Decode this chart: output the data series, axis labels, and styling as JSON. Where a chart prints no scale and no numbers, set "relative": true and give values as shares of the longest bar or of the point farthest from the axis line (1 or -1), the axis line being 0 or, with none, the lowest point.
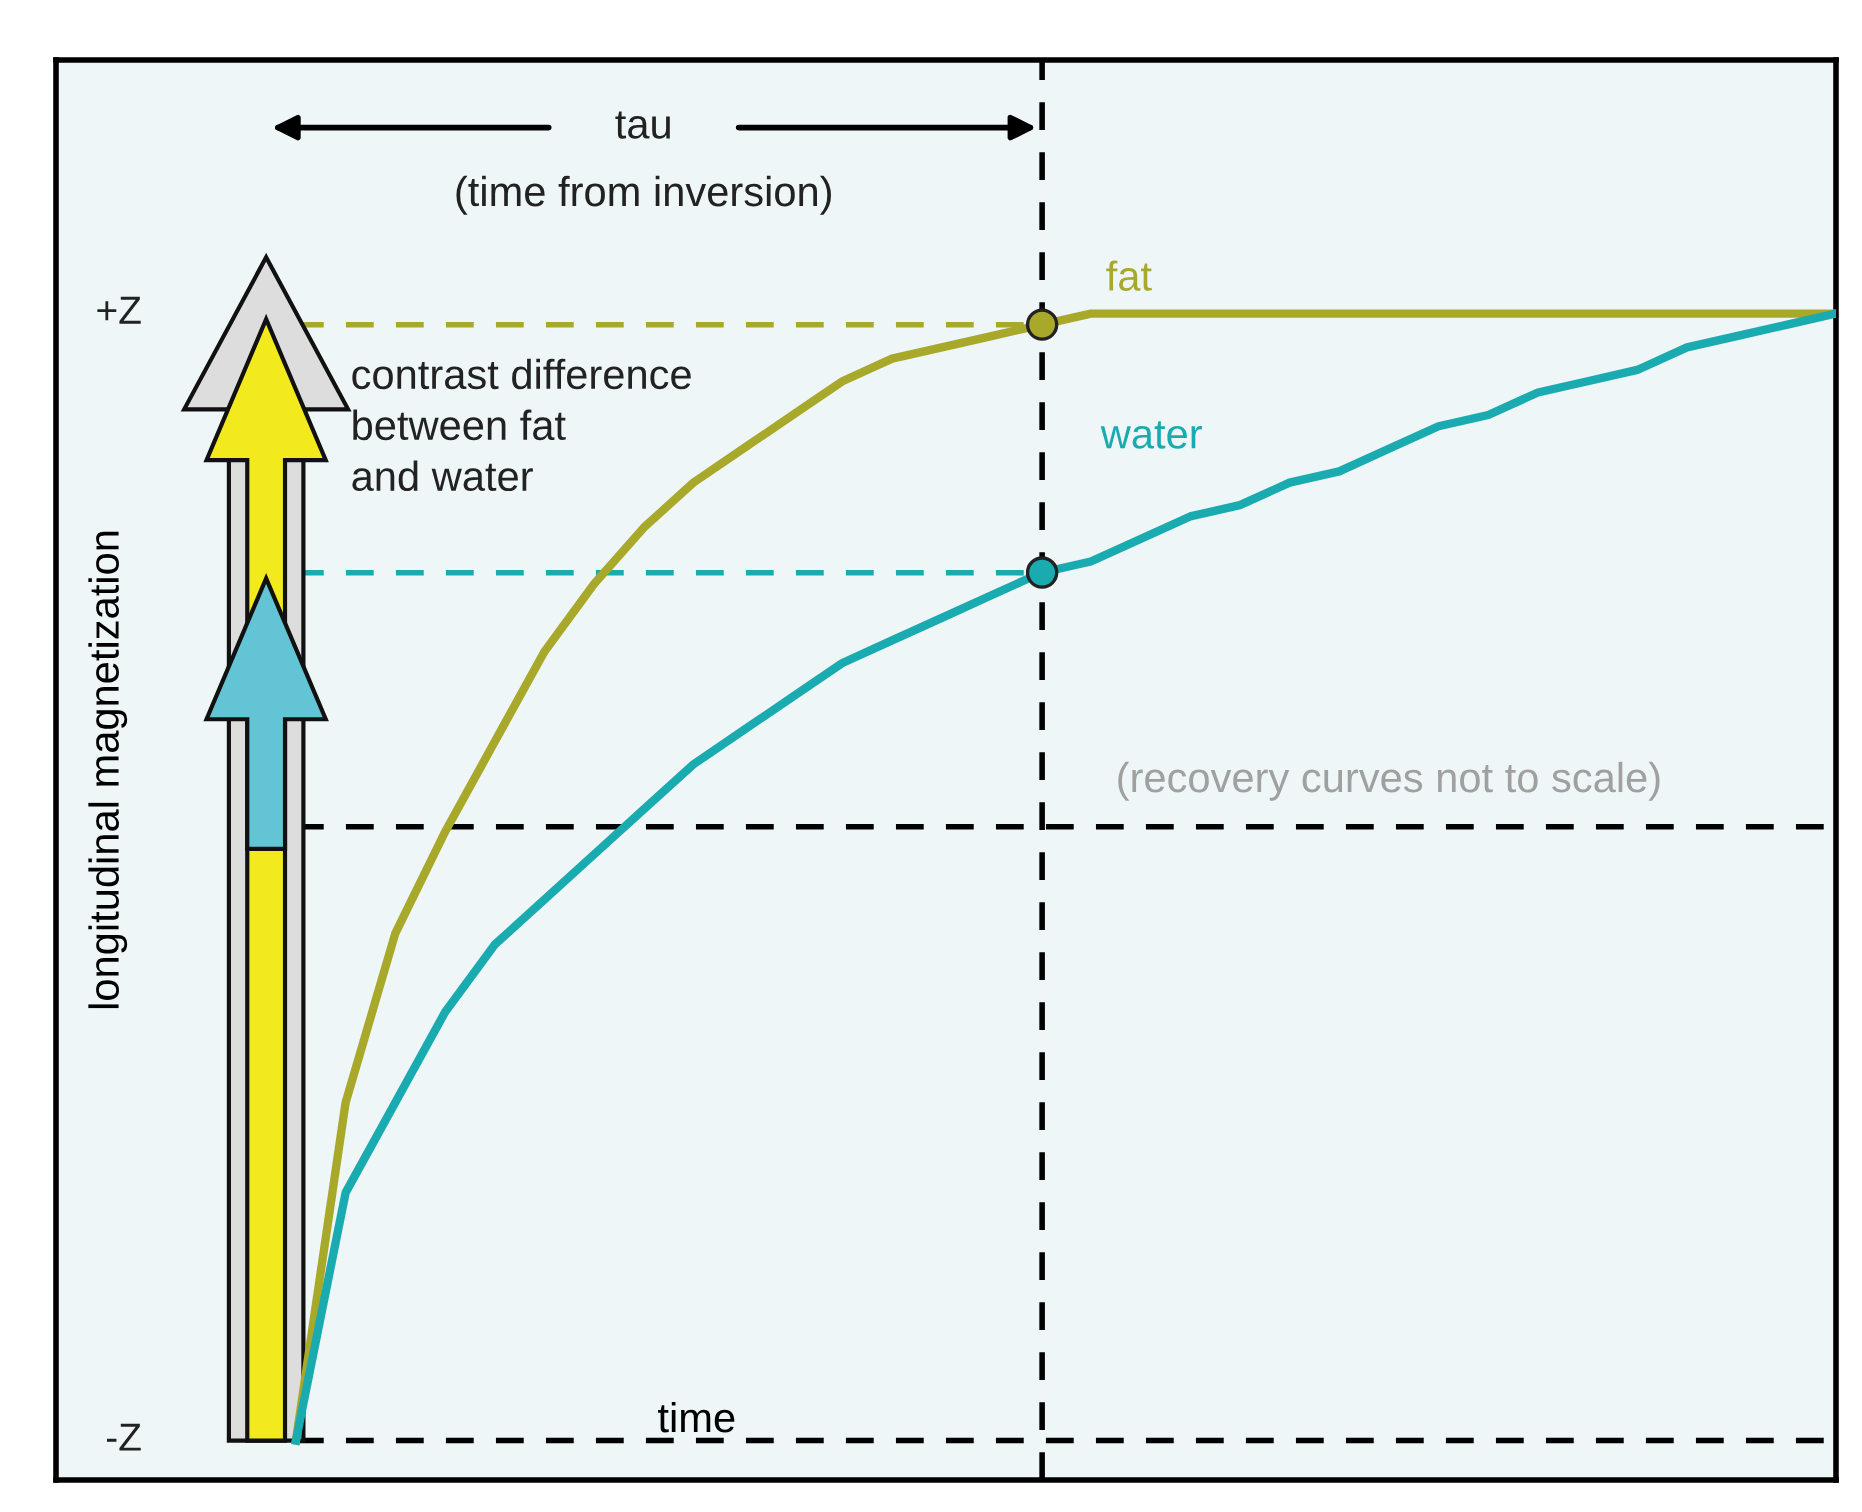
{
  "chart_data": {
    "type": "line",
    "categories": [
      null,
      null,
      null,
      null,
      null,
      null,
      null,
      null,
      null,
      null,
      null,
      null,
      null,
      null,
      null,
      null,
      null,
      null,
      null,
      null,
      null,
      null,
      null,
      null,
      null,
      null,
      null,
      null,
      null,
      null,
      null,
      null
    ],
    "ylabel": "longitudinal magnetization",
    "xlabel": "time",
    "relative": true,
    "line_style": "solid",
    "series": [
      {
        "name": "fat",
        "color": "#a8a82a",
        "values": [
          0,
          0.3,
          0.45,
          0.54,
          0.62,
          0.7,
          0.76,
          0.81,
          0.85,
          0.88,
          0.91,
          0.94,
          0.96,
          0.97,
          0.98,
          0.99,
          1.0,
          1.0,
          1.0,
          1.0,
          1.0,
          1.0,
          1.0,
          1.0,
          1.0,
          1.0,
          1.0,
          1.0,
          1.0,
          1.0,
          1.0,
          1.0
        ]
      },
      {
        "name": "water",
        "color": "#1aabb0",
        "values": [
          0,
          0.22,
          0.3,
          0.38,
          0.44,
          0.48,
          0.52,
          0.56,
          0.6,
          0.63,
          0.66,
          0.69,
          0.71,
          0.73,
          0.75,
          0.77,
          0.78,
          0.8,
          0.82,
          0.83,
          0.85,
          0.86,
          0.88,
          0.9,
          0.91,
          0.93,
          0.94,
          0.95,
          0.97,
          0.98,
          0.99,
          1.0
        ]
      }
    ],
    "ref_lines": [
      {
        "axis": "y",
        "value": 0.99,
        "color": "#a8a82a",
        "line_style": "dashed"
      },
      {
        "axis": "y",
        "value": 0.77,
        "color": "#1aabb0",
        "line_style": "dashed"
      }
    ],
    "annotations": [
      "tau",
      "(time from inversion)",
      "contrast difference\nbetween fat\nand water",
      "(recovery curves not to scale)",
      "+Z",
      "-Z"
    ]
  }
}
